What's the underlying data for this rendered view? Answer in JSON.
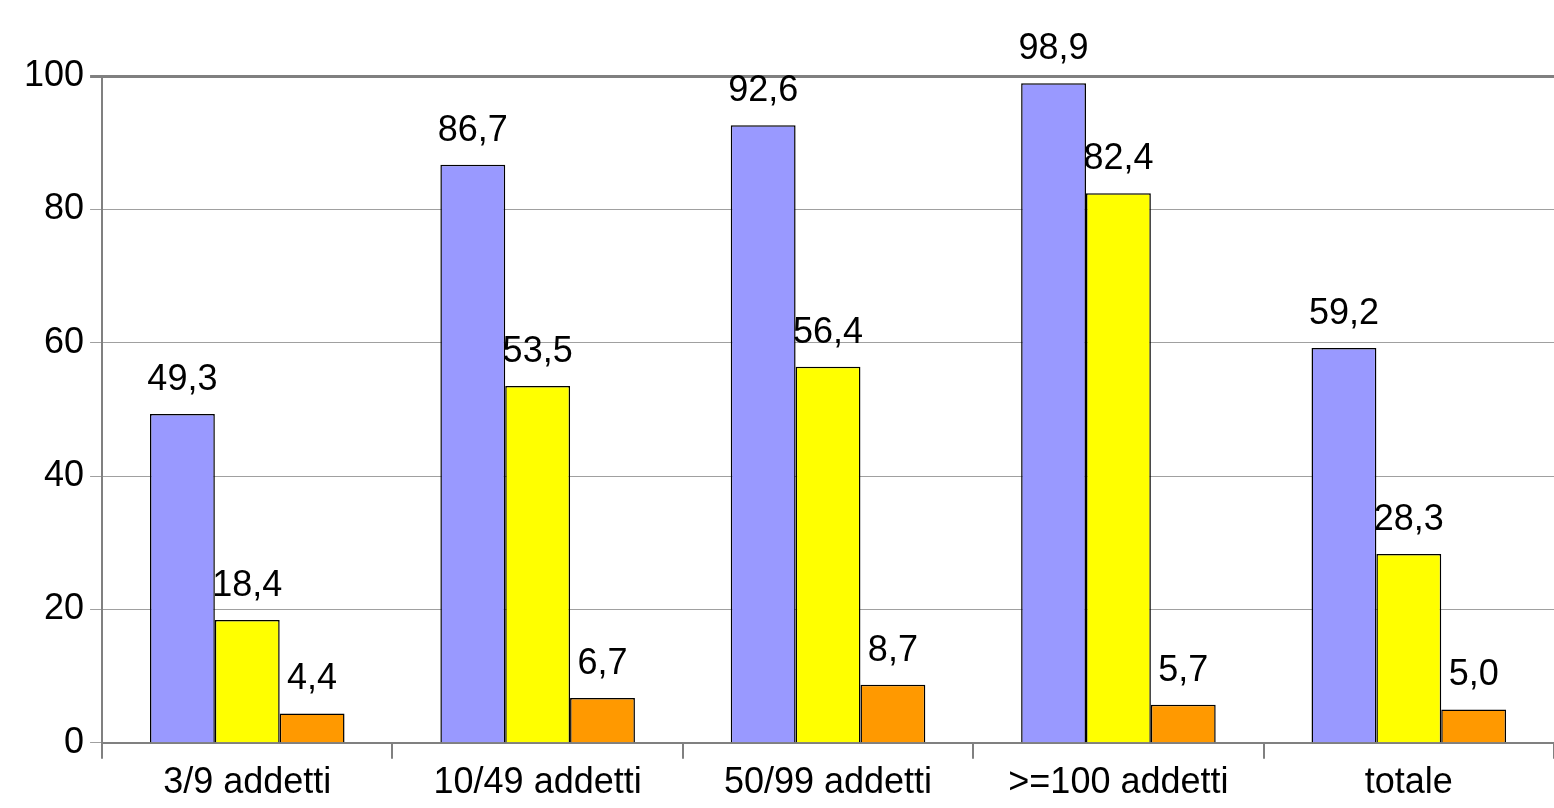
{
  "chart_data": {
    "type": "bar",
    "categories": [
      "3/9 addetti",
      "10/49 addetti",
      "50/99 addetti",
      ">=100 addetti",
      "totale"
    ],
    "series": [
      {
        "color": "#9999ff",
        "values": [
          49.3,
          86.7,
          92.6,
          98.9,
          59.2
        ],
        "value_labels": [
          "49,3",
          "86,7",
          "92,6",
          "98,9",
          "59,2"
        ]
      },
      {
        "color": "#ffff00",
        "values": [
          18.4,
          53.5,
          56.4,
          82.4,
          28.3
        ],
        "value_labels": [
          "18,4",
          "53,5",
          "56,4",
          "82,4",
          "28,3"
        ]
      },
      {
        "color": "#ff9900",
        "values": [
          4.4,
          6.7,
          8.7,
          5.7,
          5.0
        ],
        "value_labels": [
          "4,4",
          "6,7",
          "8,7",
          "5,7",
          "5,0"
        ]
      }
    ],
    "ylim": [
      0,
      100
    ],
    "yticks": [
      0,
      20,
      40,
      60,
      80,
      100
    ],
    "grid": "y",
    "legend": false
  }
}
